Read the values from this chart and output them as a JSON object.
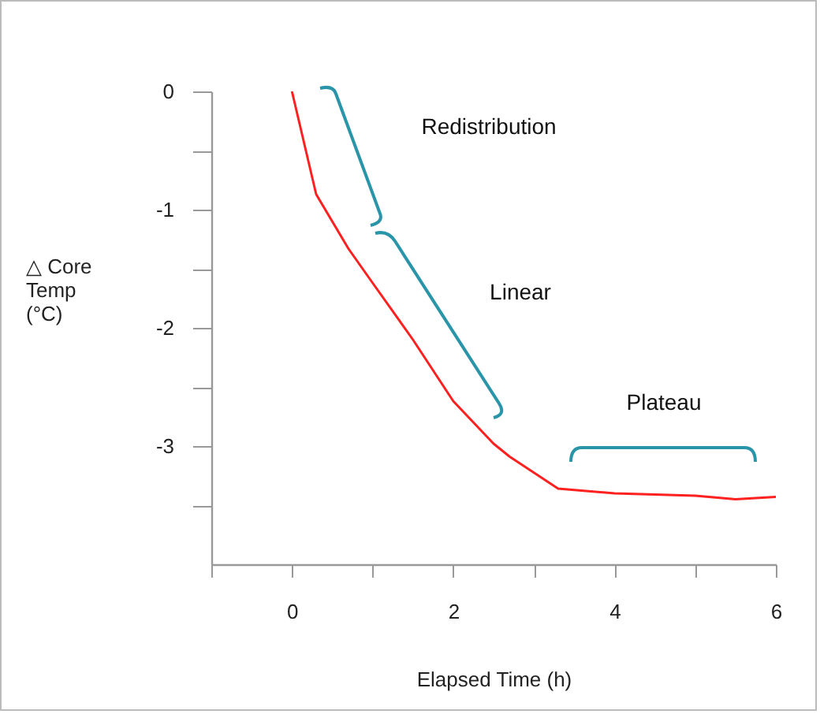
{
  "chart_data": {
    "type": "line",
    "xlabel": "Elapsed Time (h)",
    "ylabel": "△ Core\nTemp\n(°C)",
    "x": [
      0,
      0.3,
      0.7,
      1.0,
      1.5,
      2.0,
      2.5,
      2.7,
      3.3,
      4.0,
      5.0,
      5.5,
      6.0
    ],
    "series": [
      {
        "color": "#ff2020",
        "values": [
          0,
          -0.87,
          -1.33,
          -1.62,
          -2.1,
          -2.62,
          -2.98,
          -3.09,
          -3.36,
          -3.4,
          -3.42,
          -3.45,
          -3.43
        ]
      }
    ],
    "xlim": [
      -1,
      6
    ],
    "ylim": [
      -4,
      0
    ],
    "xticks": [
      {
        "value": -1,
        "label": null
      },
      0,
      {
        "value": 1,
        "label": null
      },
      2,
      {
        "value": 3,
        "label": null
      },
      4,
      {
        "value": 5,
        "label": null
      },
      6
    ],
    "yticks": [
      {
        "value": -3.5,
        "label": null
      },
      -3,
      {
        "value": -2.5,
        "label": null
      },
      -2,
      {
        "value": -1.5,
        "label": null
      },
      -1,
      {
        "value": -0.5,
        "label": null
      },
      0
    ],
    "annotations": [
      "Redistribution",
      "Linear",
      "Plateau"
    ],
    "grid": false,
    "marker": "none",
    "line_style": "solid"
  }
}
